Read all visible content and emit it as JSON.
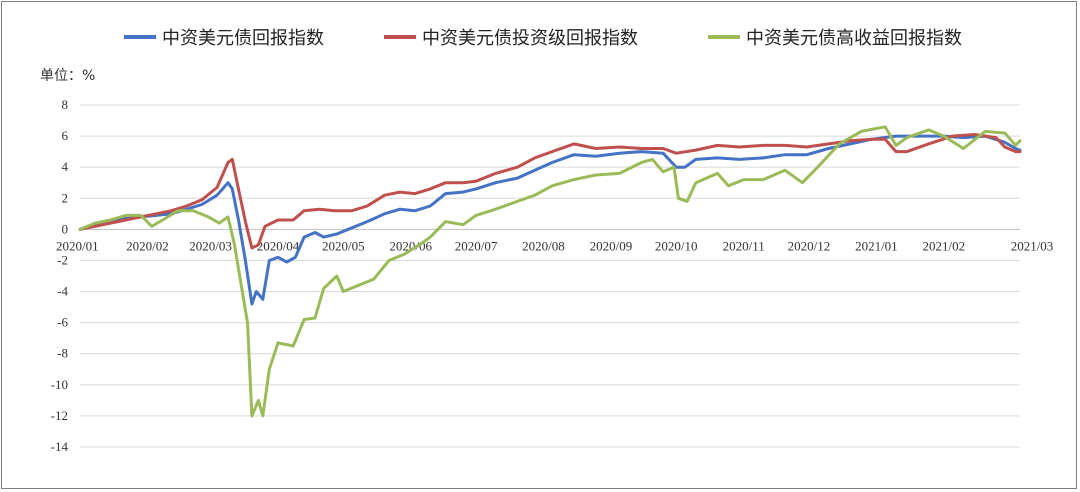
{
  "chart_data": {
    "type": "line",
    "title": "",
    "ylabel": "单位：%",
    "xlabel": "",
    "ylim": [
      -14,
      8
    ],
    "yticks": [
      8,
      6,
      4,
      2,
      0,
      -2,
      -4,
      -6,
      -8,
      -10,
      -12,
      -14
    ],
    "x_tick_labels": [
      "2020/01",
      "2020/02",
      "2020/03",
      "2020/04",
      "2020/05",
      "2020/06",
      "2020/07",
      "2020/08",
      "2020/09",
      "2020/10",
      "2020/11",
      "2020/12",
      "2021/01",
      "2021/02",
      "2021/03"
    ],
    "grid": "horizontal",
    "legend_position": "top",
    "series": [
      {
        "name": "中资美元债回报指数",
        "color": "#4472c4",
        "points": [
          [
            "2020/01/01",
            0.0
          ],
          [
            "2020/01/08",
            0.3
          ],
          [
            "2020/01/15",
            0.5
          ],
          [
            "2020/01/22",
            0.7
          ],
          [
            "2020/01/29",
            0.8
          ],
          [
            "2020/02/05",
            0.9
          ],
          [
            "2020/02/12",
            1.0
          ],
          [
            "2020/02/19",
            1.3
          ],
          [
            "2020/02/26",
            1.6
          ],
          [
            "2020/03/04",
            2.2
          ],
          [
            "2020/03/09",
            3.0
          ],
          [
            "2020/03/11",
            2.6
          ],
          [
            "2020/03/14",
            0.5
          ],
          [
            "2020/03/17",
            -2.0
          ],
          [
            "2020/03/20",
            -4.8
          ],
          [
            "2020/03/22",
            -4.0
          ],
          [
            "2020/03/25",
            -4.5
          ],
          [
            "2020/03/28",
            -2.0
          ],
          [
            "2020/04/01",
            -1.8
          ],
          [
            "2020/04/05",
            -2.1
          ],
          [
            "2020/04/09",
            -1.8
          ],
          [
            "2020/04/13",
            -0.5
          ],
          [
            "2020/04/18",
            -0.2
          ],
          [
            "2020/04/22",
            -0.5
          ],
          [
            "2020/04/28",
            -0.3
          ],
          [
            "2020/05/05",
            0.1
          ],
          [
            "2020/05/12",
            0.5
          ],
          [
            "2020/05/20",
            1.0
          ],
          [
            "2020/05/27",
            1.3
          ],
          [
            "2020/06/03",
            1.2
          ],
          [
            "2020/06/10",
            1.5
          ],
          [
            "2020/06/17",
            2.3
          ],
          [
            "2020/06/25",
            2.4
          ],
          [
            "2020/07/01",
            2.6
          ],
          [
            "2020/07/10",
            3.0
          ],
          [
            "2020/07/20",
            3.3
          ],
          [
            "2020/07/28",
            3.8
          ],
          [
            "2020/08/05",
            4.3
          ],
          [
            "2020/08/15",
            4.8
          ],
          [
            "2020/08/25",
            4.7
          ],
          [
            "2020/09/05",
            4.9
          ],
          [
            "2020/09/15",
            5.0
          ],
          [
            "2020/09/25",
            4.9
          ],
          [
            "2020/10/01",
            4.0
          ],
          [
            "2020/10/05",
            4.0
          ],
          [
            "2020/10/10",
            4.5
          ],
          [
            "2020/10/20",
            4.6
          ],
          [
            "2020/10/30",
            4.5
          ],
          [
            "2020/11/10",
            4.6
          ],
          [
            "2020/11/20",
            4.8
          ],
          [
            "2020/11/30",
            4.8
          ],
          [
            "2020/12/10",
            5.2
          ],
          [
            "2020/12/20",
            5.5
          ],
          [
            "2020/12/30",
            5.8
          ],
          [
            "2021/01/10",
            6.0
          ],
          [
            "2021/01/20",
            6.0
          ],
          [
            "2021/02/01",
            6.0
          ],
          [
            "2021/02/10",
            5.9
          ],
          [
            "2021/02/20",
            6.0
          ],
          [
            "2021/03/01",
            5.6
          ],
          [
            "2021/03/06",
            5.2
          ],
          [
            "2021/03/08",
            5.1
          ]
        ]
      },
      {
        "name": "中资美元债投资级回报指数",
        "color": "#c0504d",
        "points": [
          [
            "2020/01/01",
            0.0
          ],
          [
            "2020/01/08",
            0.2
          ],
          [
            "2020/01/15",
            0.4
          ],
          [
            "2020/01/22",
            0.6
          ],
          [
            "2020/01/29",
            0.8
          ],
          [
            "2020/02/05",
            1.0
          ],
          [
            "2020/02/12",
            1.2
          ],
          [
            "2020/02/19",
            1.5
          ],
          [
            "2020/02/26",
            1.9
          ],
          [
            "2020/03/04",
            2.7
          ],
          [
            "2020/03/09",
            4.3
          ],
          [
            "2020/03/11",
            4.5
          ],
          [
            "2020/03/14",
            2.5
          ],
          [
            "2020/03/17",
            0.5
          ],
          [
            "2020/03/20",
            -1.2
          ],
          [
            "2020/03/23",
            -1.0
          ],
          [
            "2020/03/26",
            0.2
          ],
          [
            "2020/04/01",
            0.6
          ],
          [
            "2020/04/08",
            0.6
          ],
          [
            "2020/04/13",
            1.2
          ],
          [
            "2020/04/20",
            1.3
          ],
          [
            "2020/04/27",
            1.2
          ],
          [
            "2020/05/05",
            1.2
          ],
          [
            "2020/05/12",
            1.5
          ],
          [
            "2020/05/20",
            2.2
          ],
          [
            "2020/05/27",
            2.4
          ],
          [
            "2020/06/03",
            2.3
          ],
          [
            "2020/06/10",
            2.6
          ],
          [
            "2020/06/17",
            3.0
          ],
          [
            "2020/06/25",
            3.0
          ],
          [
            "2020/07/01",
            3.1
          ],
          [
            "2020/07/10",
            3.6
          ],
          [
            "2020/07/20",
            4.0
          ],
          [
            "2020/07/28",
            4.6
          ],
          [
            "2020/08/05",
            5.0
          ],
          [
            "2020/08/15",
            5.5
          ],
          [
            "2020/08/25",
            5.2
          ],
          [
            "2020/09/05",
            5.3
          ],
          [
            "2020/09/15",
            5.2
          ],
          [
            "2020/09/25",
            5.2
          ],
          [
            "2020/10/01",
            4.9
          ],
          [
            "2020/10/10",
            5.1
          ],
          [
            "2020/10/20",
            5.4
          ],
          [
            "2020/10/30",
            5.3
          ],
          [
            "2020/11/10",
            5.4
          ],
          [
            "2020/11/20",
            5.4
          ],
          [
            "2020/11/30",
            5.3
          ],
          [
            "2020/12/10",
            5.5
          ],
          [
            "2020/12/20",
            5.7
          ],
          [
            "2020/12/30",
            5.8
          ],
          [
            "2021/01/05",
            5.8
          ],
          [
            "2021/01/10",
            5.0
          ],
          [
            "2021/01/15",
            5.0
          ],
          [
            "2021/01/25",
            5.5
          ],
          [
            "2021/02/05",
            6.0
          ],
          [
            "2021/02/15",
            6.1
          ],
          [
            "2021/02/25",
            5.9
          ],
          [
            "2021/03/01",
            5.3
          ],
          [
            "2021/03/06",
            5.0
          ],
          [
            "2021/03/08",
            5.0
          ]
        ]
      },
      {
        "name": "中资美元债高收益回报指数",
        "color": "#9bbb59",
        "points": [
          [
            "2020/01/01",
            0.0
          ],
          [
            "2020/01/08",
            0.4
          ],
          [
            "2020/01/15",
            0.6
          ],
          [
            "2020/01/22",
            0.9
          ],
          [
            "2020/01/29",
            0.9
          ],
          [
            "2020/02/03",
            0.2
          ],
          [
            "2020/02/08",
            0.6
          ],
          [
            "2020/02/15",
            1.2
          ],
          [
            "2020/02/22",
            1.2
          ],
          [
            "2020/02/29",
            0.8
          ],
          [
            "2020/03/05",
            0.4
          ],
          [
            "2020/03/09",
            0.8
          ],
          [
            "2020/03/12",
            -1.0
          ],
          [
            "2020/03/15",
            -3.5
          ],
          [
            "2020/03/18",
            -6.0
          ],
          [
            "2020/03/20",
            -12.0
          ],
          [
            "2020/03/23",
            -11.0
          ],
          [
            "2020/03/25",
            -12.0
          ],
          [
            "2020/03/28",
            -9.0
          ],
          [
            "2020/04/01",
            -7.3
          ],
          [
            "2020/04/08",
            -7.5
          ],
          [
            "2020/04/13",
            -5.8
          ],
          [
            "2020/04/18",
            -5.7
          ],
          [
            "2020/04/22",
            -3.8
          ],
          [
            "2020/04/28",
            -3.0
          ],
          [
            "2020/05/01",
            -4.0
          ],
          [
            "2020/05/08",
            -3.6
          ],
          [
            "2020/05/15",
            -3.2
          ],
          [
            "2020/05/22",
            -2.0
          ],
          [
            "2020/05/29",
            -1.6
          ],
          [
            "2020/06/05",
            -1.0
          ],
          [
            "2020/06/10",
            -0.5
          ],
          [
            "2020/06/17",
            0.5
          ],
          [
            "2020/06/25",
            0.3
          ],
          [
            "2020/07/01",
            0.9
          ],
          [
            "2020/07/10",
            1.3
          ],
          [
            "2020/07/20",
            1.8
          ],
          [
            "2020/07/28",
            2.2
          ],
          [
            "2020/08/05",
            2.8
          ],
          [
            "2020/08/15",
            3.2
          ],
          [
            "2020/08/25",
            3.5
          ],
          [
            "2020/09/05",
            3.6
          ],
          [
            "2020/09/15",
            4.3
          ],
          [
            "2020/09/20",
            4.5
          ],
          [
            "2020/09/25",
            3.7
          ],
          [
            "2020/09/30",
            4.0
          ],
          [
            "2020/10/02",
            2.0
          ],
          [
            "2020/10/06",
            1.8
          ],
          [
            "2020/10/10",
            3.0
          ],
          [
            "2020/10/20",
            3.6
          ],
          [
            "2020/10/25",
            2.8
          ],
          [
            "2020/11/01",
            3.2
          ],
          [
            "2020/11/10",
            3.2
          ],
          [
            "2020/11/20",
            3.8
          ],
          [
            "2020/11/28",
            3.0
          ],
          [
            "2020/12/05",
            4.0
          ],
          [
            "2020/12/15",
            5.5
          ],
          [
            "2020/12/25",
            6.3
          ],
          [
            "2021/01/05",
            6.6
          ],
          [
            "2021/01/10",
            5.4
          ],
          [
            "2021/01/15",
            5.9
          ],
          [
            "2021/01/25",
            6.4
          ],
          [
            "2021/02/01",
            6.0
          ],
          [
            "2021/02/10",
            5.2
          ],
          [
            "2021/02/20",
            6.3
          ],
          [
            "2021/03/01",
            6.2
          ],
          [
            "2021/03/06",
            5.4
          ],
          [
            "2021/03/08",
            5.7
          ]
        ]
      }
    ]
  }
}
